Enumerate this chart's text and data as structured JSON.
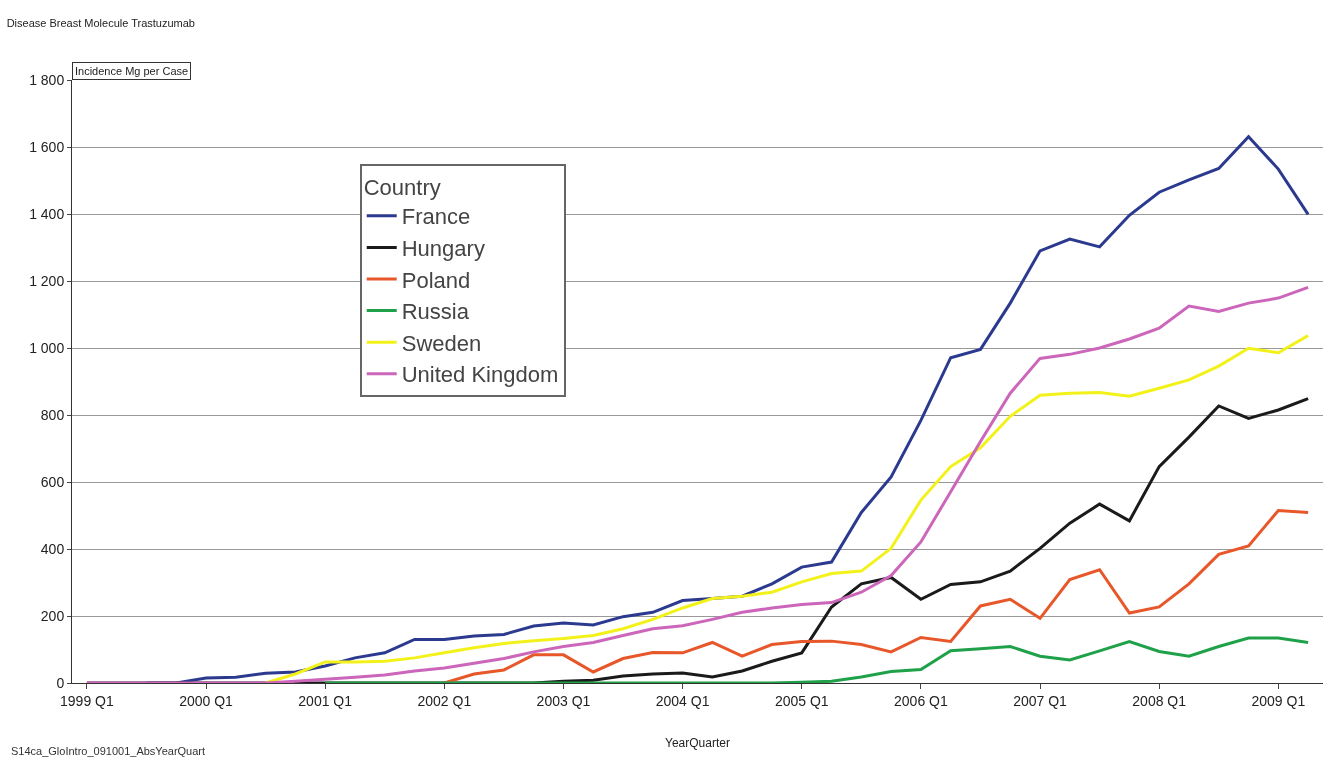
{
  "chart_data": {
    "type": "line",
    "title": "Disease Breast Molecule Trastuzumab",
    "ylabel": "Incidence Mg per Case",
    "xlabel": "YearQuarter",
    "legend_title": "Country",
    "annotations": [
      "S14ca_GloIntro_091001_AbsYearQuart"
    ],
    "categories": [
      "1999 Q1",
      null,
      null,
      null,
      "2000 Q1",
      null,
      null,
      null,
      "2001 Q1",
      null,
      null,
      null,
      "2002 Q1",
      null,
      null,
      null,
      "2003 Q1",
      null,
      null,
      null,
      "2004 Q1",
      null,
      null,
      null,
      "2005 Q1",
      null,
      null,
      null,
      "2006 Q1",
      null,
      null,
      null,
      "2007 Q1",
      null,
      null,
      null,
      "2008 Q1",
      null,
      null,
      null,
      "2009 Q1",
      null
    ],
    "ylim": [
      0,
      1800
    ],
    "yticks": [
      0,
      200,
      400,
      600,
      800,
      {
        "value": 1000,
        "label": "1 000"
      },
      {
        "value": 1200,
        "label": "1 200"
      },
      {
        "value": 1400,
        "label": "1 400"
      },
      {
        "value": 1600,
        "label": "1 600"
      },
      {
        "value": 1800,
        "label": "1 800"
      }
    ],
    "grid": "y",
    "legend": "top left",
    "marker": "none",
    "line_style": "solid",
    "series": [
      {
        "name": "France",
        "color": "#2b3a8f",
        "values": [
          null,
          null,
          0,
          0,
          15,
          17,
          29,
          33,
          51,
          75,
          90,
          130,
          130,
          140,
          145,
          170,
          179,
          173,
          198,
          211,
          246,
          252,
          259,
          296,
          346,
          361,
          509,
          615,
          784,
          971,
          996,
          1134,
          1290,
          1325,
          1302,
          1396,
          1465,
          1502,
          1536,
          1631,
          1534,
          1399
        ]
      },
      {
        "name": "Hungary",
        "color": "#1a1a1a",
        "values": [
          0,
          0,
          0,
          0,
          0,
          0,
          0,
          0,
          0,
          0,
          0,
          0,
          0,
          0,
          0,
          0,
          5,
          8,
          21,
          27,
          30,
          18,
          36,
          65,
          90,
          227,
          296,
          315,
          250,
          294,
          302,
          334,
          402,
          477,
          534,
          484,
          646,
          734,
          827,
          790,
          815,
          849
        ]
      },
      {
        "name": "Poland",
        "color": "#e8572a",
        "values": [
          null,
          null,
          null,
          null,
          null,
          null,
          null,
          null,
          null,
          null,
          null,
          null,
          0,
          27,
          39,
          84,
          84,
          33,
          73,
          91,
          90,
          121,
          80,
          115,
          124,
          125,
          115,
          93,
          136,
          124,
          230,
          250,
          193,
          309,
          338,
          209,
          227,
          296,
          384,
          409,
          515,
          509
        ]
      },
      {
        "name": "Russia",
        "color": "#1fa14a",
        "values": [
          null,
          null,
          null,
          null,
          null,
          null,
          null,
          null,
          0,
          0,
          0,
          0,
          0,
          0,
          0,
          0,
          0,
          0,
          0,
          0,
          0,
          0,
          0,
          0,
          2,
          5,
          18,
          34,
          40,
          96,
          102,
          109,
          80,
          69,
          96,
          124,
          94,
          80,
          109,
          134,
          134,
          121
        ]
      },
      {
        "name": "Sweden",
        "color": "#f2f21a",
        "values": [
          null,
          null,
          null,
          null,
          null,
          null,
          0,
          27,
          63,
          63,
          65,
          75,
          90,
          105,
          118,
          126,
          133,
          142,
          162,
          190,
          224,
          252,
          259,
          271,
          302,
          327,
          334,
          402,
          546,
          646,
          702,
          796,
          859,
          865,
          867,
          856,
          880,
          905,
          946,
          999,
          986,
          1037
        ]
      },
      {
        "name": "United Kingdom",
        "color": "#cc66bb",
        "values": [
          0,
          0,
          0,
          0,
          0,
          0,
          0,
          5,
          11,
          17,
          24,
          36,
          45,
          59,
          73,
          93,
          109,
          121,
          142,
          162,
          171,
          190,
          211,
          224,
          234,
          240,
          271,
          321,
          421,
          571,
          721,
          865,
          969,
          981,
          1000,
          1027,
          1059,
          1125,
          1109,
          1134,
          1149,
          1181
        ]
      }
    ]
  }
}
